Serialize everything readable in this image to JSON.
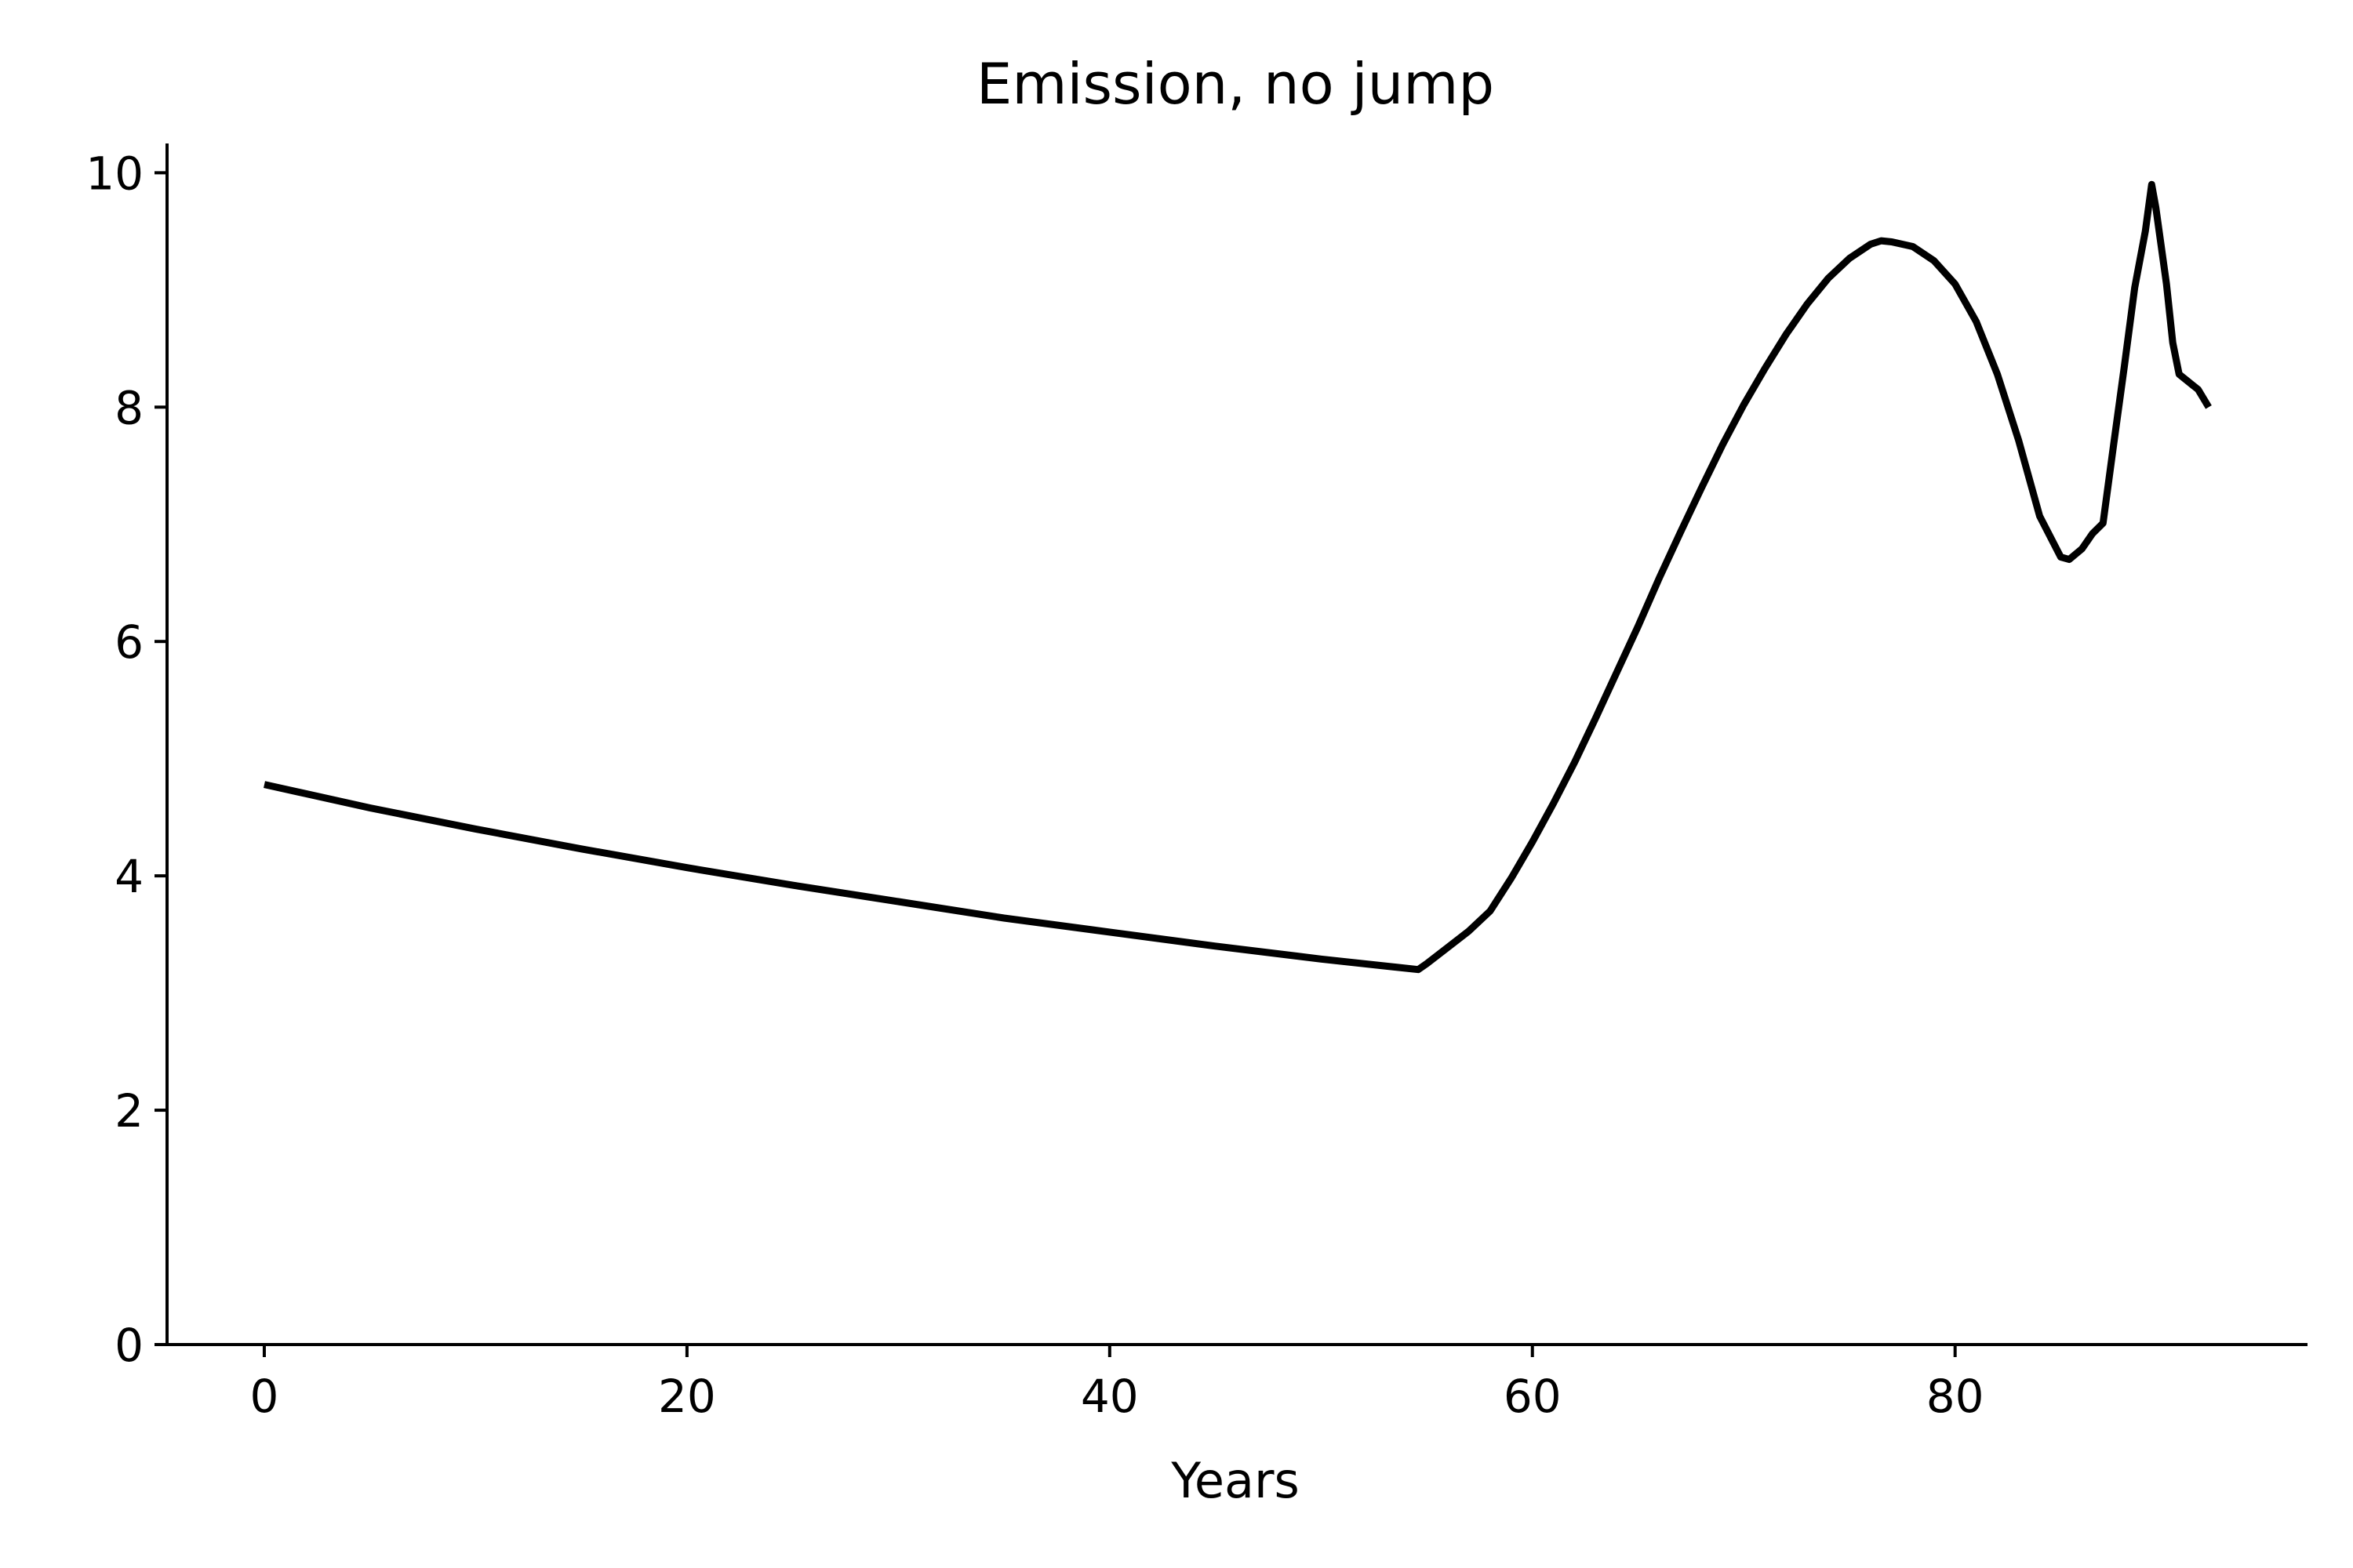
{
  "chart_data": {
    "type": "line",
    "title": "Emission, no jump",
    "xlabel": "Years",
    "ylabel": "",
    "xlim": [
      -4.6,
      96.6
    ],
    "ylim": [
      0,
      10.25
    ],
    "xticks": [
      0,
      20,
      40,
      60,
      80
    ],
    "yticks": [
      0,
      2,
      4,
      6,
      8,
      10
    ],
    "xtick_labels": [
      "0",
      "20",
      "40",
      "60",
      "80"
    ],
    "ytick_labels": [
      "0",
      "2",
      "4",
      "6",
      "8",
      "10"
    ],
    "grid": false,
    "legend": "none",
    "line_color": "#000000",
    "series": [
      {
        "name": "Emission",
        "x": [
          0,
          5,
          10,
          15,
          20,
          25,
          30,
          35,
          40,
          45,
          50,
          54.6,
          55,
          56,
          57,
          58,
          59,
          60,
          61,
          62,
          63,
          64,
          65,
          66,
          67,
          68,
          69,
          70,
          71,
          72,
          73,
          74,
          75,
          76,
          76.5,
          77,
          78,
          79,
          80,
          81,
          82,
          83,
          84,
          85,
          85.4,
          86,
          86.5,
          87,
          87.5,
          88,
          88.5,
          89,
          89.3,
          89.5,
          90,
          90.3,
          90.6,
          91.5,
          92
        ],
        "y": [
          4.78,
          4.58,
          4.4,
          4.23,
          4.07,
          3.92,
          3.78,
          3.64,
          3.52,
          3.4,
          3.29,
          3.2,
          3.25,
          3.39,
          3.53,
          3.7,
          3.98,
          4.29,
          4.62,
          4.97,
          5.35,
          5.74,
          6.13,
          6.54,
          6.93,
          7.31,
          7.68,
          8.02,
          8.33,
          8.62,
          8.88,
          9.1,
          9.27,
          9.39,
          9.42,
          9.41,
          9.37,
          9.25,
          9.05,
          8.73,
          8.28,
          7.72,
          7.07,
          6.72,
          6.7,
          6.79,
          6.92,
          7.01,
          7.68,
          8.34,
          9.02,
          9.5,
          9.9,
          9.7,
          9.05,
          8.55,
          8.28,
          8.15,
          8.0
        ]
      }
    ]
  }
}
